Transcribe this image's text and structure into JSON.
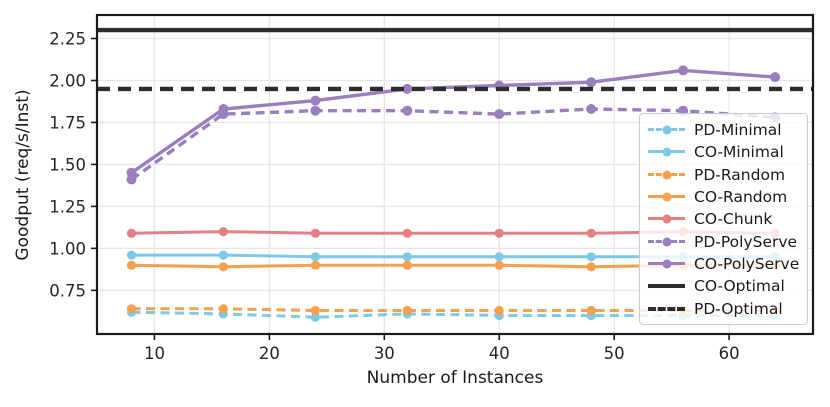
{
  "chart_data": {
    "type": "line",
    "title": "",
    "xlabel": "Number of Instances",
    "ylabel": "Goodput (req/s/Inst)",
    "x": [
      8,
      16,
      24,
      32,
      40,
      48,
      56,
      64
    ],
    "xticks": [
      "10",
      "20",
      "30",
      "40",
      "50",
      "60"
    ],
    "yticks": [
      "0.75",
      "1.00",
      "1.25",
      "1.50",
      "1.75",
      "2.00",
      "2.25"
    ],
    "xlim": [
      5.0,
      67.3
    ],
    "ylim": [
      0.49,
      2.39
    ],
    "grid": true,
    "legend_position": "lower right",
    "colors": {
      "minimal": "#7EC8E8",
      "random": "#F5A04E",
      "chunk": "#E58082",
      "polyserve": "#9A7EBE",
      "optimal": "#2D2D2D",
      "gridline": "#e6e6e6",
      "spine": "#1a1a1a"
    },
    "series": [
      {
        "name": "PD-Minimal",
        "color": "#7EC8E8",
        "style": "dashed",
        "marker": true,
        "values": [
          0.62,
          0.61,
          0.59,
          0.61,
          0.6,
          0.6,
          0.6,
          0.6
        ]
      },
      {
        "name": "CO-Minimal",
        "color": "#7EC8E8",
        "style": "solid",
        "marker": true,
        "values": [
          0.96,
          0.96,
          0.95,
          0.95,
          0.95,
          0.95,
          0.95,
          0.95
        ]
      },
      {
        "name": "PD-Random",
        "color": "#F5A04E",
        "style": "dashed",
        "marker": true,
        "values": [
          0.64,
          0.64,
          0.63,
          0.63,
          0.63,
          0.63,
          0.63,
          0.63
        ]
      },
      {
        "name": "CO-Random",
        "color": "#F5A04E",
        "style": "solid",
        "marker": true,
        "values": [
          0.9,
          0.89,
          0.9,
          0.9,
          0.9,
          0.89,
          0.9,
          0.9
        ]
      },
      {
        "name": "CO-Chunk",
        "color": "#E58082",
        "style": "solid",
        "marker": true,
        "values": [
          1.09,
          1.1,
          1.09,
          1.09,
          1.09,
          1.09,
          1.1,
          1.09
        ]
      },
      {
        "name": "PD-PolyServe",
        "color": "#9A7EBE",
        "style": "dashed",
        "marker": true,
        "values": [
          1.41,
          1.8,
          1.82,
          1.82,
          1.8,
          1.83,
          1.82,
          1.78
        ]
      },
      {
        "name": "CO-PolyServe",
        "color": "#9A7EBE",
        "style": "solid",
        "marker": true,
        "values": [
          1.45,
          1.83,
          1.88,
          1.95,
          1.97,
          1.99,
          2.06,
          2.02
        ]
      },
      {
        "name": "CO-Optimal",
        "color": "#2D2D2D",
        "style": "solid",
        "marker": false,
        "hline": 2.3
      },
      {
        "name": "PD-Optimal",
        "color": "#2D2D2D",
        "style": "dashed",
        "marker": false,
        "hline": 1.95
      }
    ]
  }
}
